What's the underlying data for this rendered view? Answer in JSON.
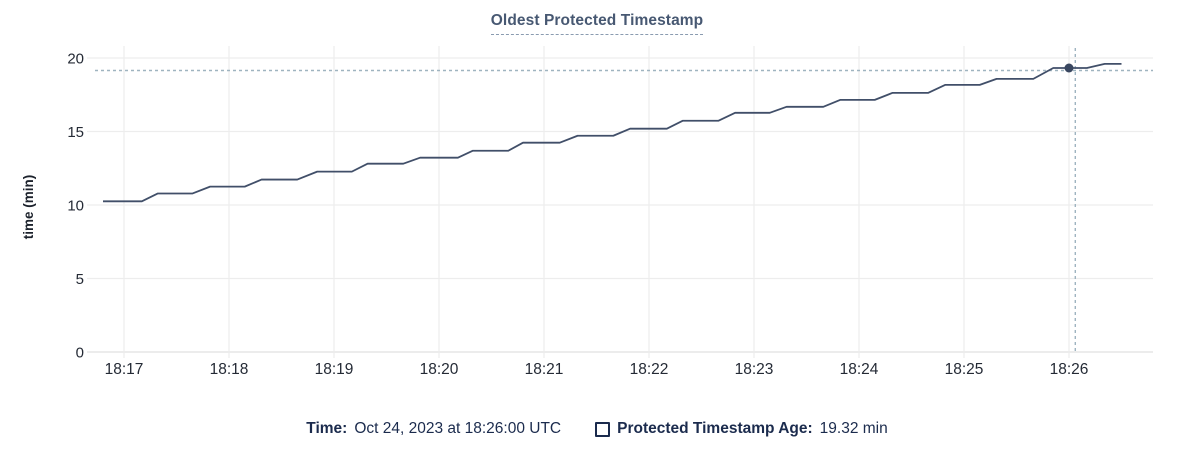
{
  "header": {
    "title": "Oldest Protected Timestamp"
  },
  "tooltip_legend": {
    "time_label": "Time:",
    "time_value": "Oct 24, 2023 at 18:26:00 UTC",
    "series_label": "Protected Timestamp Age:",
    "series_value": "19.32 min",
    "swatch_icon": "unchecked-square"
  },
  "colors": {
    "title": "#475872",
    "title_underline": "#8a9bb0",
    "line": "#414f69",
    "dot": "#394760",
    "grid": "#ededed",
    "axis": "#e0e0e0",
    "crosshair": "#9fb4c0",
    "tick_text": "#242a35",
    "ylabel_text": "#1c222c",
    "legend_text": "#1b2b4d"
  },
  "chart_data": {
    "type": "line",
    "title": "Oldest Protected Timestamp",
    "xlabel": "",
    "ylabel": "time (min)",
    "ylim": [
      0,
      20
    ],
    "y_ticks": [
      0,
      5,
      10,
      15,
      20
    ],
    "x_ticks": [
      "18:17",
      "18:18",
      "18:19",
      "18:20",
      "18:21",
      "18:22",
      "18:23",
      "18:24",
      "18:25",
      "18:26"
    ],
    "x_unit": "minutes offset from 18:17:00 UTC",
    "grid": true,
    "legend_position": "bottom",
    "series": [
      {
        "name": "Protected Timestamp Age",
        "unit": "min",
        "points": [
          [
            -0.2,
            10.25
          ],
          [
            0.17,
            10.25
          ],
          [
            0.32,
            10.78
          ],
          [
            0.65,
            10.78
          ],
          [
            0.82,
            11.25
          ],
          [
            1.15,
            11.25
          ],
          [
            1.31,
            11.73
          ],
          [
            1.65,
            11.73
          ],
          [
            1.84,
            12.27
          ],
          [
            2.17,
            12.27
          ],
          [
            2.32,
            12.81
          ],
          [
            2.66,
            12.81
          ],
          [
            2.82,
            13.22
          ],
          [
            3.18,
            13.22
          ],
          [
            3.32,
            13.69
          ],
          [
            3.66,
            13.69
          ],
          [
            3.8,
            14.24
          ],
          [
            4.15,
            14.24
          ],
          [
            4.32,
            14.71
          ],
          [
            4.66,
            14.71
          ],
          [
            4.82,
            15.19
          ],
          [
            5.17,
            15.19
          ],
          [
            5.32,
            15.73
          ],
          [
            5.66,
            15.73
          ],
          [
            5.82,
            16.27
          ],
          [
            6.15,
            16.27
          ],
          [
            6.31,
            16.68
          ],
          [
            6.66,
            16.68
          ],
          [
            6.82,
            17.15
          ],
          [
            7.15,
            17.15
          ],
          [
            7.32,
            17.63
          ],
          [
            7.66,
            17.63
          ],
          [
            7.82,
            18.17
          ],
          [
            8.15,
            18.17
          ],
          [
            8.31,
            18.58
          ],
          [
            8.66,
            18.58
          ],
          [
            8.85,
            19.32
          ],
          [
            9.17,
            19.32
          ],
          [
            9.34,
            19.6
          ],
          [
            9.5,
            19.6
          ]
        ]
      }
    ],
    "highlight": {
      "x_offset": 9,
      "x_label": "18:26:00",
      "value": 19.32
    },
    "crosshair": {
      "x_offset": 9.06,
      "y_value": 19.32
    }
  }
}
